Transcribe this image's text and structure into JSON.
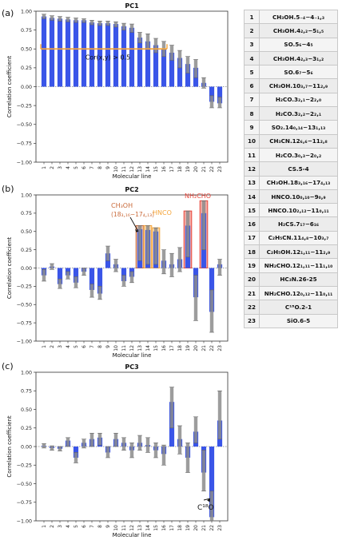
{
  "chart_data": [
    {
      "type": "bar",
      "panel_label": "(a)",
      "title": "PC1",
      "xlabel": "Molecular line",
      "ylabel": "Correlation coefficient",
      "ylim": [
        -1.0,
        1.0
      ],
      "yticks": [
        "1.00",
        "0.75",
        "0.50",
        "0.25",
        "0.00",
        "−0.25",
        "−0.50",
        "−0.75",
        "−1.00"
      ],
      "categories": [
        "1",
        "2",
        "3",
        "4",
        "5",
        "6",
        "7",
        "8",
        "9",
        "10",
        "11",
        "12",
        "13",
        "14",
        "15",
        "16",
        "17",
        "18",
        "19",
        "20",
        "21",
        "22",
        "23"
      ],
      "values": [
        0.93,
        0.91,
        0.9,
        0.89,
        0.88,
        0.88,
        0.85,
        0.84,
        0.84,
        0.83,
        0.8,
        0.78,
        0.65,
        0.6,
        0.55,
        0.5,
        0.45,
        0.38,
        0.3,
        0.25,
        0.05,
        -0.2,
        -0.22
      ],
      "err_low": [
        0.9,
        0.88,
        0.87,
        0.86,
        0.85,
        0.85,
        0.82,
        0.81,
        0.81,
        0.79,
        0.75,
        0.72,
        0.58,
        0.5,
        0.45,
        0.4,
        0.35,
        0.25,
        0.18,
        0.12,
        -0.02,
        -0.28,
        -0.28
      ],
      "err_high": [
        0.96,
        0.94,
        0.93,
        0.92,
        0.91,
        0.9,
        0.88,
        0.87,
        0.87,
        0.86,
        0.84,
        0.83,
        0.72,
        0.7,
        0.64,
        0.6,
        0.55,
        0.48,
        0.4,
        0.36,
        0.12,
        -0.12,
        -0.14
      ],
      "annotation": "Cor(x,y) > 0.5"
    },
    {
      "type": "bar",
      "panel_label": "(b)",
      "title": "PC2",
      "xlabel": "Molecular line",
      "ylabel": "Correlation coefficient",
      "ylim": [
        -1.0,
        1.0
      ],
      "yticks": [
        "1.00",
        "0.75",
        "0.50",
        "0.25",
        "0.00",
        "−0.25",
        "−0.50",
        "−0.75",
        "−1.00"
      ],
      "categories": [
        "1",
        "2",
        "3",
        "4",
        "5",
        "6",
        "7",
        "8",
        "9",
        "10",
        "11",
        "12",
        "13",
        "14",
        "15",
        "16",
        "17",
        "18",
        "19",
        "20",
        "21",
        "22",
        "23"
      ],
      "values": [
        -0.1,
        0.02,
        -0.22,
        -0.1,
        -0.2,
        -0.05,
        -0.3,
        -0.35,
        0.2,
        0.05,
        -0.18,
        -0.12,
        0.53,
        0.52,
        0.5,
        0.1,
        0.05,
        0.12,
        0.58,
        -0.4,
        0.75,
        -0.6,
        0.05
      ],
      "err_low": [
        -0.18,
        -0.02,
        -0.28,
        -0.15,
        -0.27,
        -0.1,
        -0.4,
        -0.43,
        0.1,
        -0.05,
        -0.25,
        -0.2,
        0.1,
        0.05,
        0.05,
        -0.08,
        -0.12,
        -0.05,
        0.15,
        -0.72,
        0.25,
        -0.88,
        -0.1
      ],
      "err_high": [
        -0.02,
        0.06,
        -0.15,
        -0.05,
        -0.12,
        0.0,
        -0.22,
        -0.25,
        0.3,
        0.12,
        -0.1,
        -0.05,
        0.58,
        0.58,
        0.55,
        0.25,
        0.2,
        0.28,
        0.78,
        -0.1,
        0.92,
        -0.3,
        0.12
      ],
      "highlight_groups": [
        {
          "label_line1": "CH₃OH",
          "label_line2": "(18₃,₁₆−17₄,₁₃)",
          "indices": [
            13
          ],
          "color": "#c96a3a"
        },
        {
          "label_line1": "HNCO",
          "label_line2": "",
          "indices": [
            14,
            15
          ],
          "color": "#f5a53a"
        },
        {
          "label_line1": "NH₂CHO",
          "label_line2": "",
          "indices": [
            19,
            21
          ],
          "color": "#e8463a"
        }
      ]
    },
    {
      "type": "bar",
      "panel_label": "(c)",
      "title": "PC3",
      "xlabel": "Molecular line",
      "ylabel": "Correlation coefficient",
      "ylim": [
        -1.0,
        1.0
      ],
      "yticks": [
        "1.00",
        "0.75",
        "0.50",
        "0.25",
        "0.00",
        "−0.25",
        "−0.50",
        "−0.75",
        "−1.00"
      ],
      "categories": [
        "1",
        "2",
        "3",
        "4",
        "5",
        "6",
        "7",
        "8",
        "9",
        "10",
        "11",
        "12",
        "13",
        "14",
        "15",
        "16",
        "17",
        "18",
        "19",
        "20",
        "21",
        "22",
        "23"
      ],
      "values": [
        0.01,
        -0.02,
        -0.03,
        0.08,
        -0.15,
        0.05,
        0.1,
        0.12,
        -0.08,
        0.1,
        0.05,
        -0.05,
        0.05,
        0.02,
        -0.05,
        -0.1,
        0.6,
        0.1,
        -0.15,
        0.2,
        -0.35,
        -0.95,
        0.35
      ],
      "err_low": [
        -0.02,
        -0.05,
        -0.06,
        0.0,
        -0.22,
        -0.02,
        0.0,
        0.02,
        -0.15,
        0.0,
        -0.05,
        -0.15,
        -0.05,
        -0.08,
        -0.15,
        -0.25,
        0.25,
        -0.1,
        -0.35,
        0.05,
        -0.6,
        -1.0,
        0.1
      ],
      "err_high": [
        0.04,
        0.01,
        0.0,
        0.12,
        -0.08,
        0.1,
        0.18,
        0.18,
        0.0,
        0.18,
        0.12,
        0.05,
        0.15,
        0.12,
        0.05,
        0.02,
        0.8,
        0.28,
        0.05,
        0.4,
        -0.05,
        -0.6,
        0.75
      ],
      "annotation": "C¹⁸O"
    }
  ],
  "colors": {
    "bar": "#3a55e8",
    "error": "#8c8c8c",
    "threshold": "#f5a53a",
    "axis": "#333333"
  },
  "legend_table": [
    {
      "num": "1",
      "label": "CH₃OH.5₋₄−4₋₁,₃"
    },
    {
      "num": "2",
      "label": "CH₃OH.4₂,₂−5₁,₅"
    },
    {
      "num": "3",
      "label": "SO.5₆−4₅"
    },
    {
      "num": "4",
      "label": "CH₃OH.4₂,₃−3₁,₂"
    },
    {
      "num": "5",
      "label": "SO.6₇−5₆"
    },
    {
      "num": "6",
      "label": "CH₃OH.10₃,₇−11₂,₉"
    },
    {
      "num": "7",
      "label": "H₂CO.3₂,₁−2₂,₀"
    },
    {
      "num": "8",
      "label": "H₂CO.3₂,₂−2₂,₁"
    },
    {
      "num": "9",
      "label": "SO₂.14₀,₁₄−13₁,₁₃"
    },
    {
      "num": "10",
      "label": "CH₃CN.12₆,₆−11₂,₈"
    },
    {
      "num": "11",
      "label": "H₂CO.3₀,₃−2₀,₂"
    },
    {
      "num": "12",
      "label": "CS.5-4"
    },
    {
      "num": "13",
      "label": "CH₃OH.18₃,₁₆−17₄,₁₃"
    },
    {
      "num": "14",
      "label": "HNCO.10₀,₁₀−9₀,₉"
    },
    {
      "num": "15",
      "label": "HNCO.10₂,₁₂−11₀,₁₁"
    },
    {
      "num": "16",
      "label": "H₂CS.7₁₇−6₁₆"
    },
    {
      "num": "17",
      "label": "C₂H₅CN.11₄,₈−10₃,₇"
    },
    {
      "num": "18",
      "label": "C₂H₅OH.12₁,₁₁−11₂,₉"
    },
    {
      "num": "19",
      "label": "NH₂CHO.12₁,₁₁−11₁,₁₀"
    },
    {
      "num": "20",
      "label": "HC₃N.26-25"
    },
    {
      "num": "21",
      "label": "NH₂CHO.12₀,₁₂−11₀,₁₁"
    },
    {
      "num": "22",
      "label": "C¹⁸O.2-1"
    },
    {
      "num": "23",
      "label": "SiO.6-5"
    }
  ]
}
